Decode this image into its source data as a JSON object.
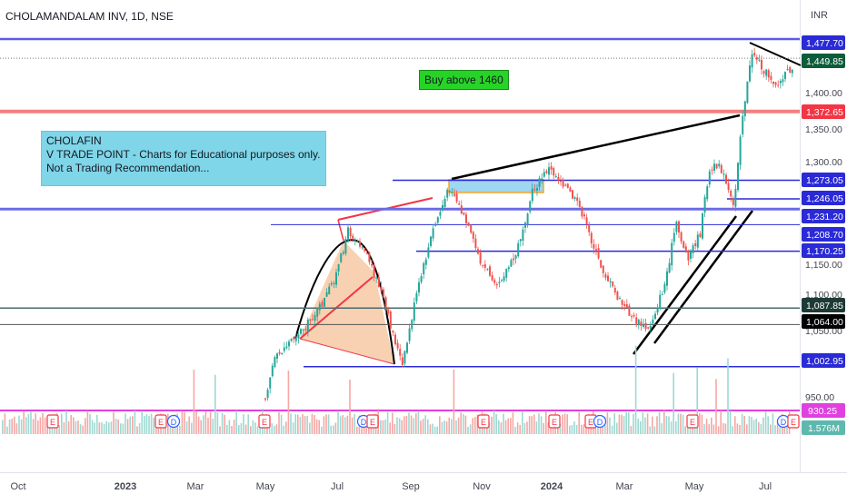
{
  "header": {
    "symbol": "CHOLAMANDALAM INV, 1D, NSE",
    "currency": "INR"
  },
  "annotations": {
    "note_lines": [
      "CHOLAFIN",
      "V TRADE POINT - Charts for Educational purposes only.",
      "Not a Trading Recommendation..."
    ],
    "buy_label": "Buy above 1460"
  },
  "colors": {
    "up": "#26a69a",
    "down": "#ef5350",
    "level_blue": "#2a2ad6",
    "level_red": "#f28080",
    "level_gray": "#4a6a6a",
    "volume_line": "#e040e0",
    "trend_line": "#000000"
  },
  "chart_data": {
    "type": "candlestick",
    "title": "CHOLAMANDALAM INV, 1D, NSE",
    "currency": "INR",
    "ylim": [
      900,
      1520
    ],
    "x_ticks": [
      "Oct",
      "2023",
      "Mar",
      "May",
      "Jul",
      "Sep",
      "Nov",
      "2024",
      "Mar",
      "May",
      "Jul"
    ],
    "y_ticks": [
      "1,400.00",
      "1,350.00",
      "1,300.00",
      "1,150.00",
      "1,100.00",
      "1,050.00",
      "950.00"
    ],
    "price_path": [
      {
        "date": "2023-05-01",
        "price": 960
      },
      {
        "date": "2023-05-08",
        "price": 1010
      },
      {
        "date": "2023-05-22",
        "price": 1040
      },
      {
        "date": "2023-06-05",
        "price": 1063
      },
      {
        "date": "2023-06-19",
        "price": 1095
      },
      {
        "date": "2023-07-01",
        "price": 1140
      },
      {
        "date": "2023-07-10",
        "price": 1200
      },
      {
        "date": "2023-07-24",
        "price": 1175
      },
      {
        "date": "2023-08-07",
        "price": 1110
      },
      {
        "date": "2023-08-25",
        "price": 1003
      },
      {
        "date": "2023-09-05",
        "price": 1100
      },
      {
        "date": "2023-09-20",
        "price": 1200
      },
      {
        "date": "2023-10-05",
        "price": 1265
      },
      {
        "date": "2023-10-20",
        "price": 1205
      },
      {
        "date": "2023-11-01",
        "price": 1150
      },
      {
        "date": "2023-11-15",
        "price": 1125
      },
      {
        "date": "2023-11-30",
        "price": 1160
      },
      {
        "date": "2023-12-15",
        "price": 1255
      },
      {
        "date": "2023-12-29",
        "price": 1290
      },
      {
        "date": "2024-01-10",
        "price": 1270
      },
      {
        "date": "2024-01-25",
        "price": 1230
      },
      {
        "date": "2024-02-10",
        "price": 1150
      },
      {
        "date": "2024-02-25",
        "price": 1100
      },
      {
        "date": "2024-03-10",
        "price": 1070
      },
      {
        "date": "2024-03-22",
        "price": 1055
      },
      {
        "date": "2024-04-05",
        "price": 1120
      },
      {
        "date": "2024-04-15",
        "price": 1210
      },
      {
        "date": "2024-04-25",
        "price": 1160
      },
      {
        "date": "2024-05-06",
        "price": 1195
      },
      {
        "date": "2024-05-13",
        "price": 1280
      },
      {
        "date": "2024-05-22",
        "price": 1300
      },
      {
        "date": "2024-06-04",
        "price": 1231
      },
      {
        "date": "2024-06-10",
        "price": 1350
      },
      {
        "date": "2024-06-20",
        "price": 1460
      },
      {
        "date": "2024-07-01",
        "price": 1430
      },
      {
        "date": "2024-07-12",
        "price": 1410
      },
      {
        "date": "2024-07-25",
        "price": 1440
      }
    ],
    "levels": [
      {
        "price": 1477.7,
        "label": "1,477.70",
        "color": "#2a2ad6"
      },
      {
        "price": 1449.85,
        "label": "1,449.85",
        "color": "#0d5c3a"
      },
      {
        "price": 1372.65,
        "label": "1,372.65",
        "color": "#f23645"
      },
      {
        "price": 1273.05,
        "label": "1,273.05",
        "color": "#2a2ad6"
      },
      {
        "price": 1246.05,
        "label": "1,246.05",
        "color": "#2a2ad6"
      },
      {
        "price": 1231.2,
        "label": "1,231.20",
        "color": "#2a2ad6"
      },
      {
        "price": 1208.7,
        "label": "1,208.70",
        "color": "#2a2ad6"
      },
      {
        "price": 1170.25,
        "label": "1,170.25",
        "color": "#2a2ad6"
      },
      {
        "price": 1087.85,
        "label": "1,087.85",
        "color": "#1e3a34"
      },
      {
        "price": 1064.0,
        "label": "1,064.00",
        "color": "#000000"
      },
      {
        "price": 1002.95,
        "label": "1,002.95",
        "color": "#2a2ad6"
      }
    ],
    "volume": {
      "ma_label": "930.25",
      "last_label": "1.576M"
    },
    "event_markers": [
      "E",
      "E",
      "D",
      "E",
      "D",
      "E",
      "E",
      "E",
      "E",
      "D",
      "E",
      "D",
      "E"
    ]
  }
}
